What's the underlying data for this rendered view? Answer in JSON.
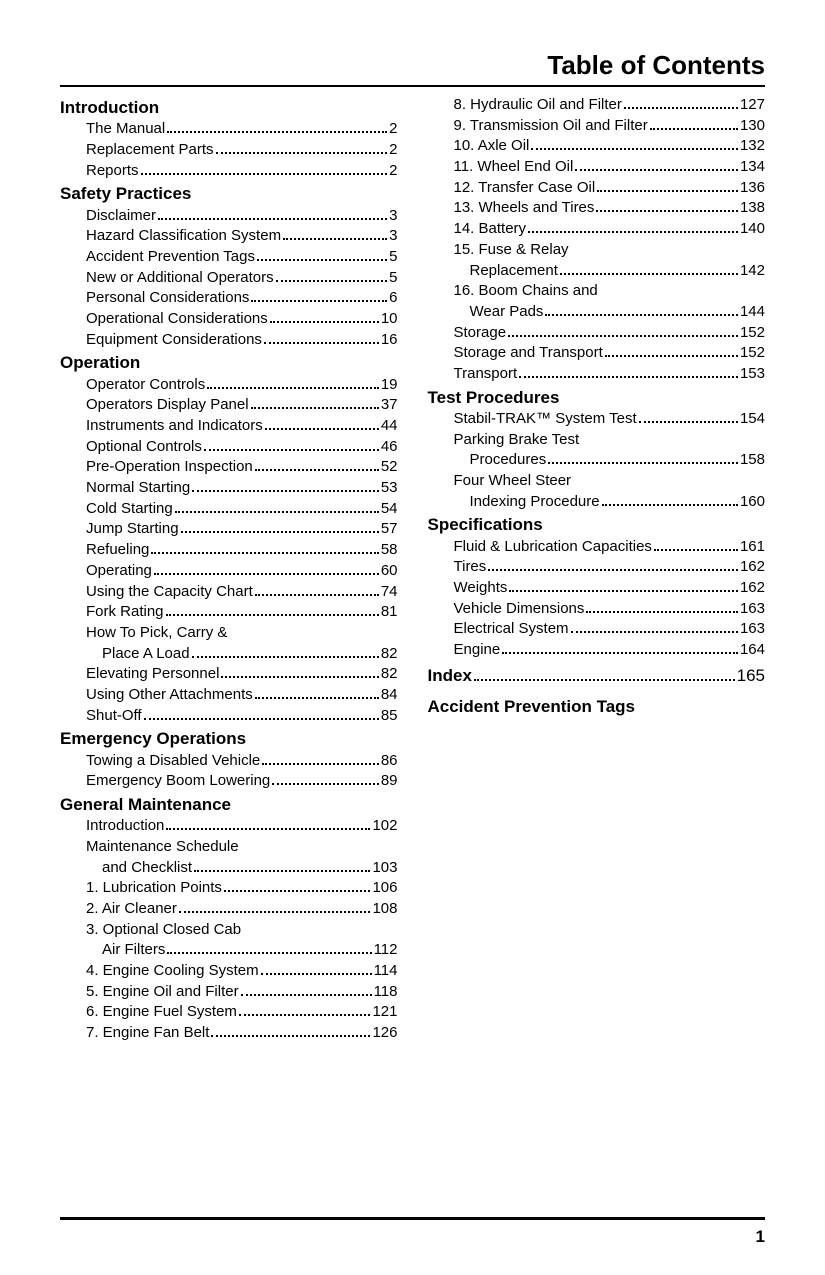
{
  "title": "Table of Contents",
  "page_number": "1",
  "left": [
    {
      "type": "section",
      "label": "Introduction"
    },
    {
      "type": "entry",
      "label": "The Manual",
      "page": "2"
    },
    {
      "type": "entry",
      "label": "Replacement Parts",
      "page": "2"
    },
    {
      "type": "entry",
      "label": "Reports",
      "page": "2"
    },
    {
      "type": "section",
      "label": "Safety Practices"
    },
    {
      "type": "entry",
      "label": "Disclaimer",
      "page": "3"
    },
    {
      "type": "entry",
      "label": "Hazard Classification System",
      "page": "3"
    },
    {
      "type": "entry",
      "label": "Accident Prevention Tags",
      "page": "5"
    },
    {
      "type": "entry",
      "label": "New or Additional Operators",
      "page": "5"
    },
    {
      "type": "entry",
      "label": "Personal Considerations",
      "page": "6"
    },
    {
      "type": "entry",
      "label": "Operational Considerations",
      "page": "10"
    },
    {
      "type": "entry",
      "label": "Equipment Considerations",
      "page": "16"
    },
    {
      "type": "section",
      "label": "Operation"
    },
    {
      "type": "entry",
      "label": "Operator Controls",
      "page": "19"
    },
    {
      "type": "entry",
      "label": "Operators Display Panel",
      "page": "37"
    },
    {
      "type": "entry",
      "label": "Instruments and Indicators",
      "page": "44"
    },
    {
      "type": "entry",
      "label": "Optional Controls",
      "page": "46"
    },
    {
      "type": "entry",
      "label": "Pre-Operation Inspection",
      "page": "52"
    },
    {
      "type": "entry",
      "label": "Normal Starting",
      "page": "53"
    },
    {
      "type": "entry",
      "label": "Cold Starting",
      "page": "54"
    },
    {
      "type": "entry",
      "label": "Jump Starting",
      "page": "57"
    },
    {
      "type": "entry",
      "label": "Refueling",
      "page": "58"
    },
    {
      "type": "entry",
      "label": "Operating",
      "page": "60"
    },
    {
      "type": "entry",
      "label": "Using the Capacity Chart",
      "page": "74"
    },
    {
      "type": "entry",
      "label": "Fork Rating",
      "page": "81"
    },
    {
      "type": "wrap",
      "line1": "How To Pick, Carry &",
      "line2": "Place A Load",
      "page": "82"
    },
    {
      "type": "entry",
      "label": "Elevating Personnel",
      "page": "82"
    },
    {
      "type": "entry",
      "label": "Using Other Attachments",
      "page": "84"
    },
    {
      "type": "entry",
      "label": "Shut-Off",
      "page": "85"
    },
    {
      "type": "section",
      "label": "Emergency Operations"
    },
    {
      "type": "entry",
      "label": "Towing a Disabled Vehicle",
      "page": "86"
    },
    {
      "type": "entry",
      "label": "Emergency Boom Lowering",
      "page": "89"
    },
    {
      "type": "section",
      "label": "General Maintenance"
    },
    {
      "type": "entry",
      "label": "Introduction",
      "page": "102"
    },
    {
      "type": "wrap",
      "line1": "Maintenance Schedule",
      "line2": "and Checklist",
      "page": "103"
    },
    {
      "type": "entry",
      "label": "1. Lubrication Points",
      "page": "106"
    },
    {
      "type": "entry",
      "label": "2. Air Cleaner",
      "page": "108"
    },
    {
      "type": "wrap",
      "line1": "3. Optional Closed Cab",
      "line2": "Air Filters",
      "page": "112"
    },
    {
      "type": "entry",
      "label": "4. Engine Cooling System",
      "page": "114"
    },
    {
      "type": "entry",
      "label": "5. Engine Oil and Filter",
      "page": "118"
    },
    {
      "type": "entry",
      "label": "6. Engine Fuel System",
      "page": "121"
    },
    {
      "type": "entry",
      "label": "7. Engine Fan Belt",
      "page": "126"
    }
  ],
  "right": [
    {
      "type": "entry",
      "label": "8. Hydraulic Oil and Filter",
      "page": "127"
    },
    {
      "type": "entry",
      "label": "9. Transmission Oil and Filter",
      "page": "130"
    },
    {
      "type": "entry",
      "label": "10. Axle Oil",
      "page": "132"
    },
    {
      "type": "entry",
      "label": "11. Wheel End Oil",
      "page": "134"
    },
    {
      "type": "entry",
      "label": "12. Transfer Case Oil",
      "page": "136"
    },
    {
      "type": "entry",
      "label": "13. Wheels and Tires",
      "page": "138"
    },
    {
      "type": "entry",
      "label": "14. Battery",
      "page": "140"
    },
    {
      "type": "wrap",
      "line1": "15. Fuse & Relay",
      "line2": "Replacement",
      "page": "142"
    },
    {
      "type": "wrap",
      "line1": "16. Boom Chains and",
      "line2": "Wear Pads",
      "page": "144"
    },
    {
      "type": "entry",
      "label": "Storage",
      "page": "152"
    },
    {
      "type": "entry",
      "label": "Storage and Transport",
      "page": "152"
    },
    {
      "type": "entry",
      "label": "Transport",
      "page": "153"
    },
    {
      "type": "section",
      "label": "Test Procedures"
    },
    {
      "type": "entry",
      "label": "Stabil-TRAK™ System Test",
      "page": "154"
    },
    {
      "type": "wrap",
      "line1": "Parking Brake Test",
      "line2": "Procedures",
      "page": "158"
    },
    {
      "type": "wrap",
      "line1": "Four Wheel Steer",
      "line2": "Indexing Procedure",
      "page": "160"
    },
    {
      "type": "section",
      "label": "Specifications"
    },
    {
      "type": "entry",
      "label": "Fluid & Lubrication Capacities",
      "page": "161"
    },
    {
      "type": "entry",
      "label": "Tires",
      "page": "162"
    },
    {
      "type": "entry",
      "label": "Weights",
      "page": "162"
    },
    {
      "type": "entry",
      "label": "Vehicle Dimensions",
      "page": "163"
    },
    {
      "type": "entry",
      "label": "Electrical System",
      "page": "163"
    },
    {
      "type": "entry",
      "label": "Engine",
      "page": "164"
    },
    {
      "type": "section_page",
      "label": "Index",
      "page": "165"
    },
    {
      "type": "section_only",
      "label": "Accident Prevention Tags"
    }
  ]
}
